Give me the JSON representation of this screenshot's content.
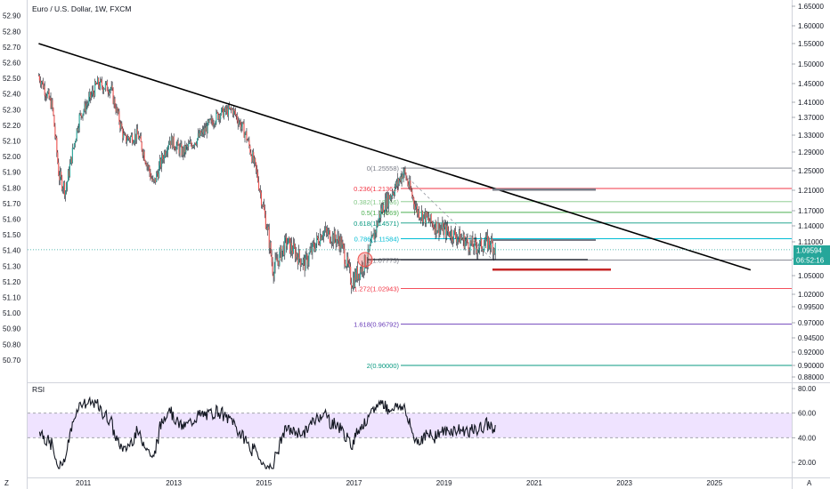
{
  "title": "Euro / U.S. Dollar, 1W, FXCM",
  "price_tag": "1.09594",
  "countdown": "06:52:16",
  "rsi_label": "RSI",
  "corner_left": "Z",
  "corner_right": "A",
  "colors": {
    "up": "#26a69a",
    "down": "#ef5350",
    "candle": "#131722",
    "rsi_band": "#efe3ff",
    "trendline": "#000000",
    "price_tag_bg": "#26a69a"
  },
  "chart_data": {
    "type": "candlestick",
    "left_axis": {
      "min": 50.7,
      "max": 52.9,
      "step": 0.1,
      "labels": [
        "52.90",
        "52.80",
        "52.70",
        "52.60",
        "52.50",
        "52.40",
        "52.30",
        "52.20",
        "52.10",
        "52.00",
        "51.90",
        "51.80",
        "51.70",
        "51.60",
        "51.50",
        "51.40",
        "51.30",
        "51.20",
        "51.10",
        "51.00",
        "50.90",
        "50.80",
        "50.70"
      ]
    },
    "right_axis": {
      "labels": [
        "1.65000",
        "1.60000",
        "1.55000",
        "1.50000",
        "1.45000",
        "1.41000",
        "1.37000",
        "1.33000",
        "1.29000",
        "1.25000",
        "1.21000",
        "1.17000",
        "1.14000",
        "1.11000",
        "1.08000",
        "1.05000",
        "1.02000",
        "0.99500",
        "0.97000",
        "0.94500",
        "0.92000",
        "0.90000",
        "0.88000"
      ]
    },
    "x_axis": {
      "labels": [
        "2011",
        "2013",
        "2015",
        "2017",
        "2019",
        "2021",
        "2023",
        "2025"
      ]
    },
    "price_path": [
      {
        "year": 2010.0,
        "price": 1.47
      },
      {
        "year": 2010.3,
        "price": 1.4
      },
      {
        "year": 2010.45,
        "price": 1.24
      },
      {
        "year": 2010.6,
        "price": 1.21
      },
      {
        "year": 2010.9,
        "price": 1.37
      },
      {
        "year": 2011.3,
        "price": 1.45
      },
      {
        "year": 2011.6,
        "price": 1.44
      },
      {
        "year": 2011.9,
        "price": 1.32
      },
      {
        "year": 2012.2,
        "price": 1.33
      },
      {
        "year": 2012.55,
        "price": 1.22
      },
      {
        "year": 2012.9,
        "price": 1.32
      },
      {
        "year": 2013.2,
        "price": 1.29
      },
      {
        "year": 2013.6,
        "price": 1.33
      },
      {
        "year": 2014.0,
        "price": 1.38
      },
      {
        "year": 2014.3,
        "price": 1.39
      },
      {
        "year": 2014.6,
        "price": 1.33
      },
      {
        "year": 2014.85,
        "price": 1.24
      },
      {
        "year": 2015.1,
        "price": 1.12
      },
      {
        "year": 2015.2,
        "price": 1.06
      },
      {
        "year": 2015.5,
        "price": 1.11
      },
      {
        "year": 2015.9,
        "price": 1.07
      },
      {
        "year": 2016.3,
        "price": 1.13
      },
      {
        "year": 2016.7,
        "price": 1.11
      },
      {
        "year": 2016.95,
        "price": 1.04
      },
      {
        "year": 2017.3,
        "price": 1.08
      },
      {
        "year": 2017.6,
        "price": 1.17
      },
      {
        "year": 2018.0,
        "price": 1.23
      },
      {
        "year": 2018.1,
        "price": 1.25
      },
      {
        "year": 2018.4,
        "price": 1.17
      },
      {
        "year": 2018.8,
        "price": 1.14
      },
      {
        "year": 2019.3,
        "price": 1.12
      },
      {
        "year": 2019.7,
        "price": 1.1
      },
      {
        "year": 2020.0,
        "price": 1.11
      },
      {
        "year": 2020.15,
        "price": 1.096
      }
    ],
    "trendline": {
      "start": {
        "year": 2010.0,
        "price": 1.55
      },
      "end": {
        "year": 2025.8,
        "price": 1.06
      }
    },
    "fibonacci": [
      {
        "label": "0(1.25558)",
        "price": 1.25558,
        "color": "#787b86"
      },
      {
        "label": "0.236(1.21362)",
        "price": 1.21362,
        "color": "#f23645"
      },
      {
        "label": "0.382(1.18766)",
        "price": 1.18766,
        "color": "#81c784"
      },
      {
        "label": "0.5(1.16669)",
        "price": 1.16669,
        "color": "#4caf50"
      },
      {
        "label": "0.618(1.14571)",
        "price": 1.14571,
        "color": "#089981"
      },
      {
        "label": "0.786(1.11584)",
        "price": 1.11584,
        "color": "#00bcd4"
      },
      {
        "label": "1(1.07775)",
        "price": 1.07775,
        "color": "#787b86"
      },
      {
        "label": "1.272(1.02943)",
        "price": 1.02943,
        "color": "#f23645"
      },
      {
        "label": "1.618(0.96792)",
        "price": 0.96792,
        "color": "#673ab7"
      },
      {
        "label": "2(0.90000)",
        "price": 0.9,
        "color": "#089981"
      }
    ],
    "rsi": {
      "axis_labels": [
        "80.00",
        "60.00",
        "40.00",
        "20.00"
      ],
      "upper": 60,
      "lower": 40,
      "last": 45
    }
  }
}
